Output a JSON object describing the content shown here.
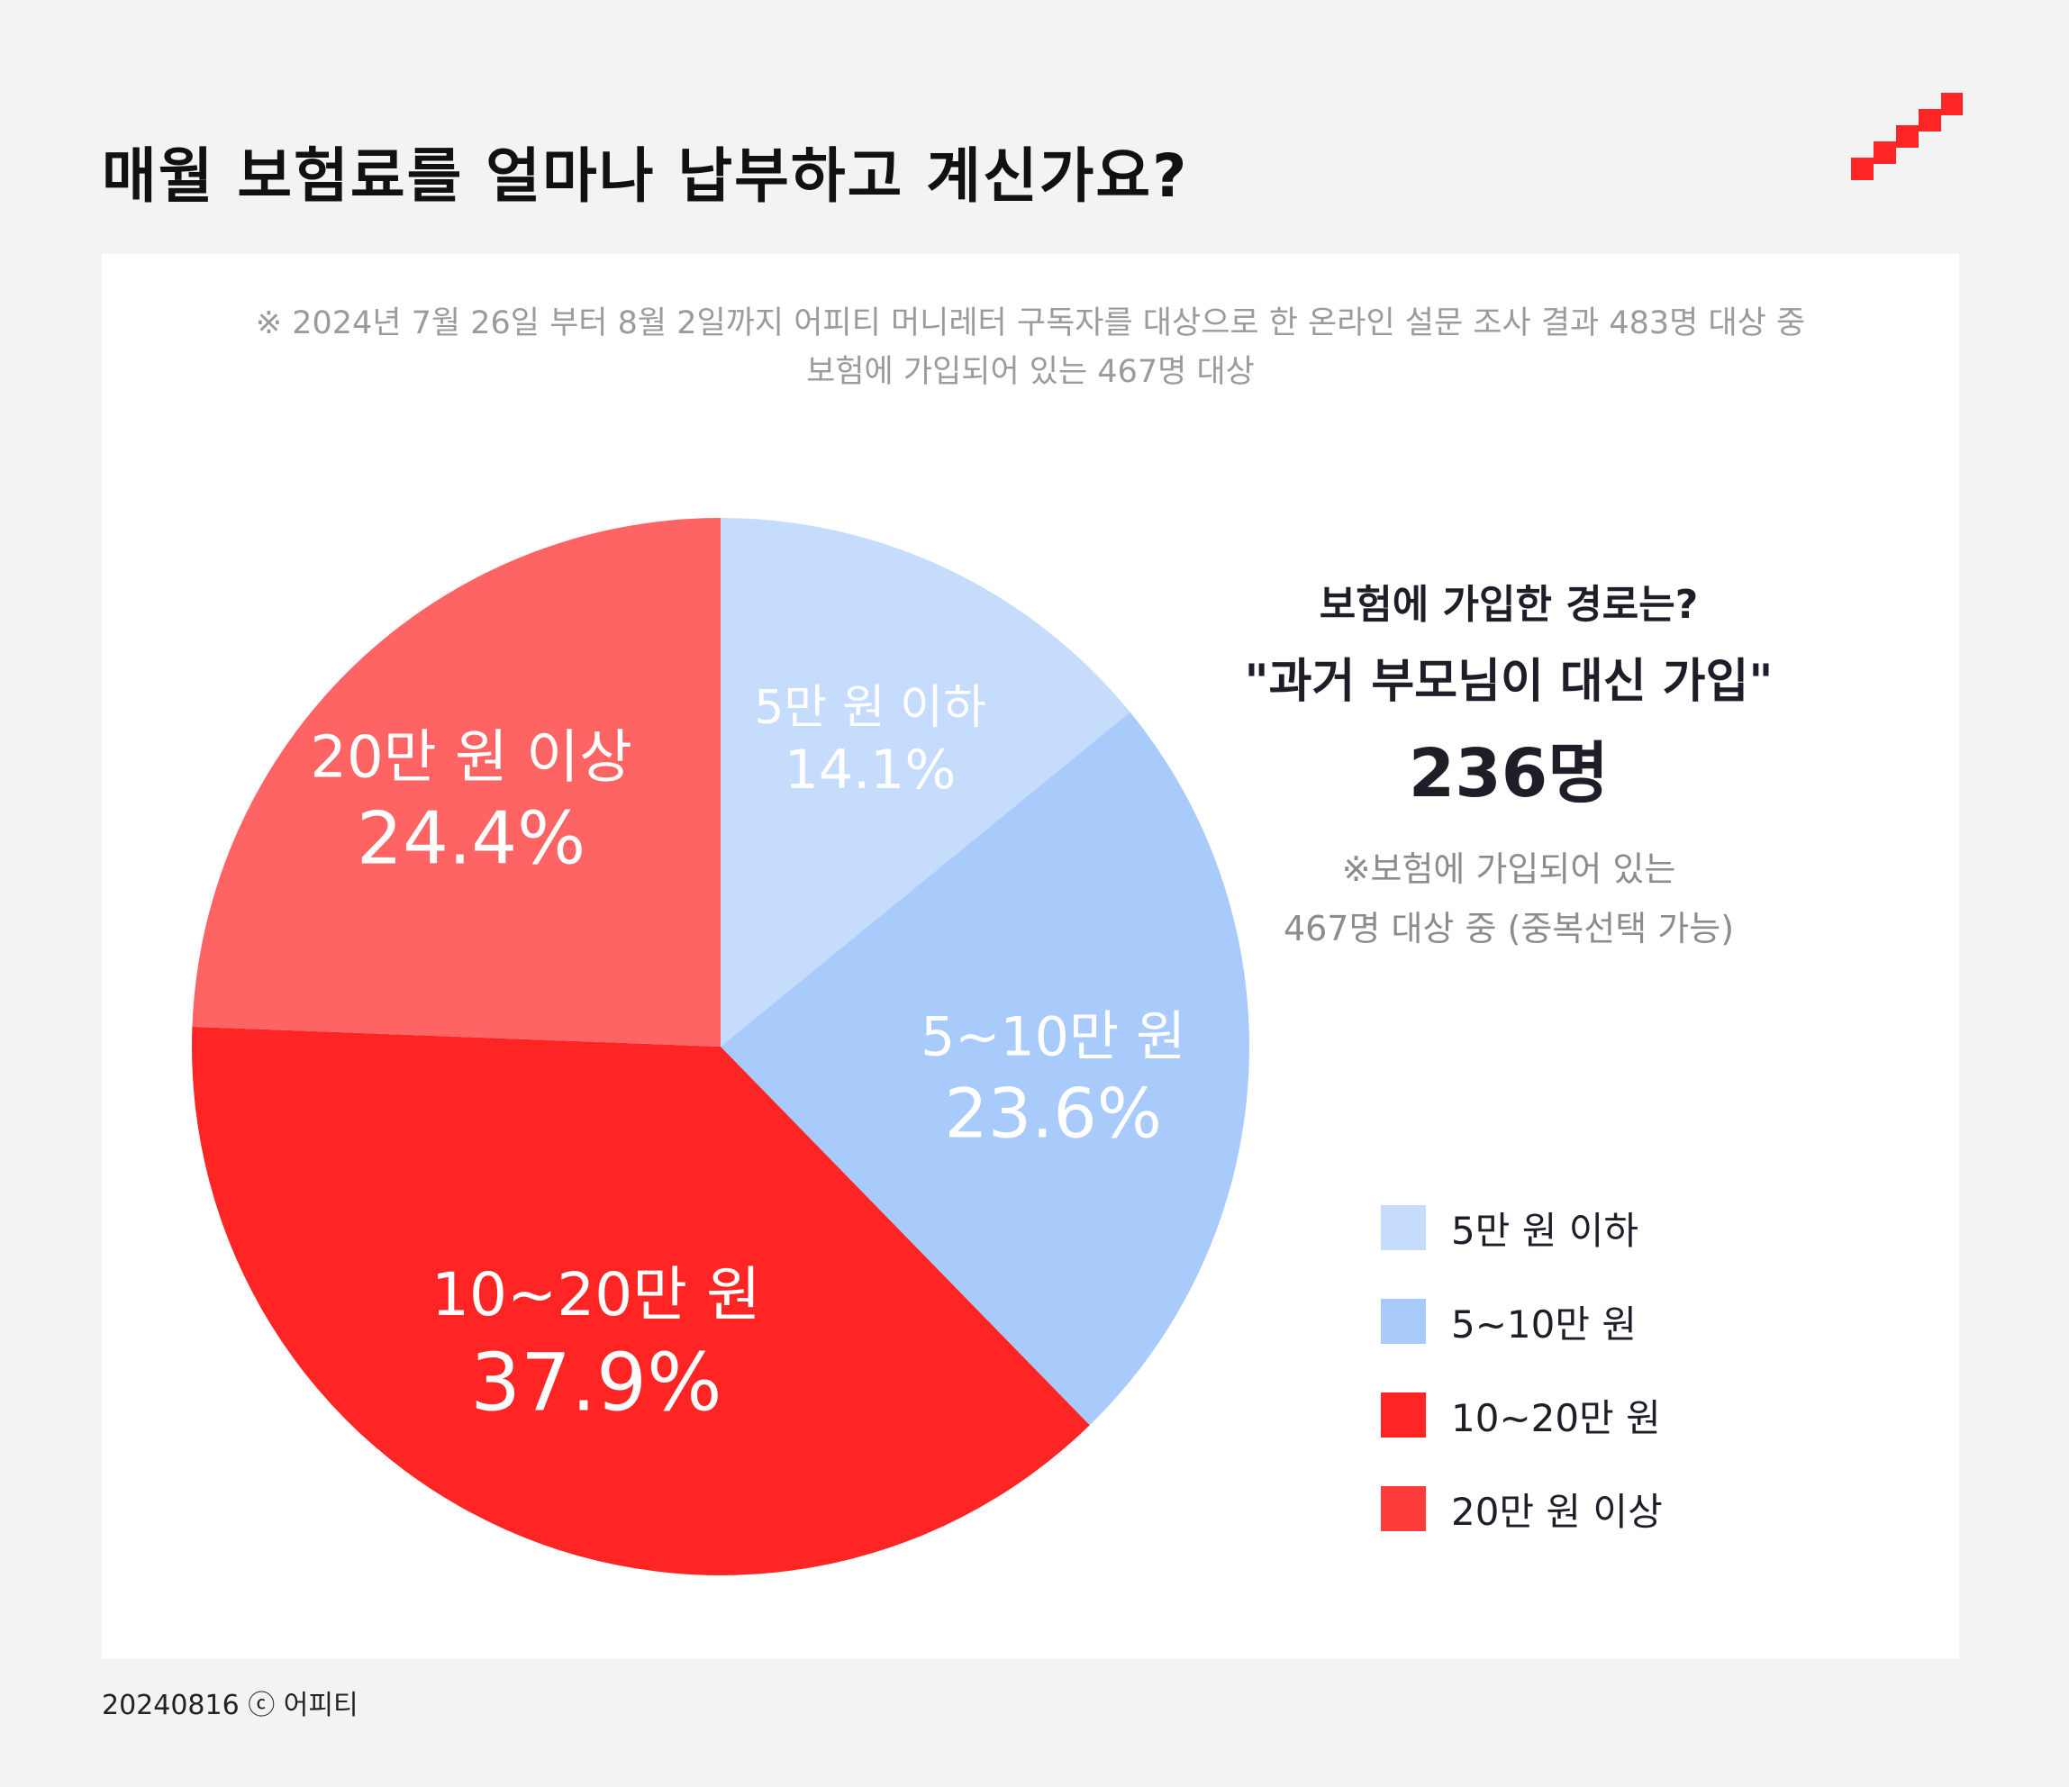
{
  "title": "매월 보험료를 얼마나 납부하고 계신가요?",
  "note": {
    "line1": "※ 2024년 7월 26일 부터 8월 2일까지 어피티 머니레터 구독자를 대상으로 한 온라인 설문 조사 결과 483명 대상 중",
    "line2": "보험에 가입되어 있는 467명 대상"
  },
  "side": {
    "question": "보험에 가입한 경로는?",
    "answer": "\"과거 부모님이 대신 가입\"",
    "count": "236명",
    "note_line1": "※보험에 가입되어 있는",
    "note_line2": "467명 대상 중 (중복선택 가능)"
  },
  "footer": "20240816 ⓒ 어피티",
  "chart_data": {
    "type": "pie",
    "title": "",
    "unit": "%",
    "start": "12 o'clock, clockwise",
    "slices": [
      {
        "label": "5만 원 이하",
        "value": 14.1,
        "value_label": "14.1%",
        "color": "#c6dcfd"
      },
      {
        "label": "5~10만 원",
        "value": 23.6,
        "value_label": "23.6%",
        "color": "#a9cbfc"
      },
      {
        "label": "10~20만 원",
        "value": 37.9,
        "value_label": "37.9%",
        "color": "#ff2525"
      },
      {
        "label": "20만 원 이상",
        "value": 24.4,
        "value_label": "24.4%",
        "color": "#ff6464"
      }
    ],
    "legend": {
      "placement": "right",
      "items": [
        {
          "label": "5만 원 이하",
          "color": "#c6dcfd"
        },
        {
          "label": "5~10만 원",
          "color": "#a9cbfc"
        },
        {
          "label": "10~20만 원",
          "color": "#ff2525"
        },
        {
          "label": "20만 원 이상",
          "color": "#ff3c3c"
        }
      ]
    }
  },
  "colors": {
    "background": "#f3f3f3",
    "card": "#ffffff",
    "brand": "#ff2525",
    "text": "#1e1e28",
    "muted": "#9b9b9b"
  },
  "icons": {
    "logo": "staircase-logo-icon"
  }
}
